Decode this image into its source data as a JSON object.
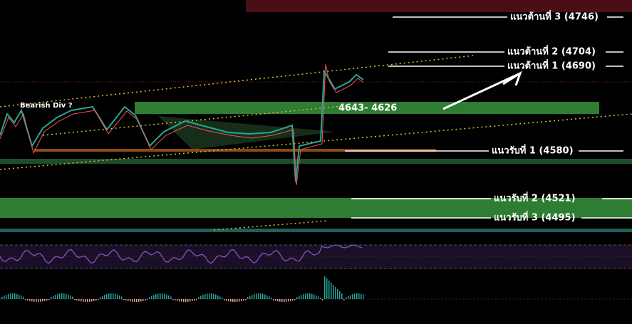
{
  "levels": {
    "resistance_3": "แนวต้านที่ 3 (4746)",
    "resistance_2": "แนวต้านที่ 2 (4704)",
    "resistance_1": "แนวต้านที่ 1 (4690)",
    "support_1": "แนวรับที่ 1 (4580)",
    "support_2": "แนวรับที่ 2 (4521)",
    "support_3": "แนวรับที่ 3 (4495)"
  },
  "annotations": {
    "bearish_div": "Bearish Div ?",
    "zone": "4643-  4626"
  }
}
